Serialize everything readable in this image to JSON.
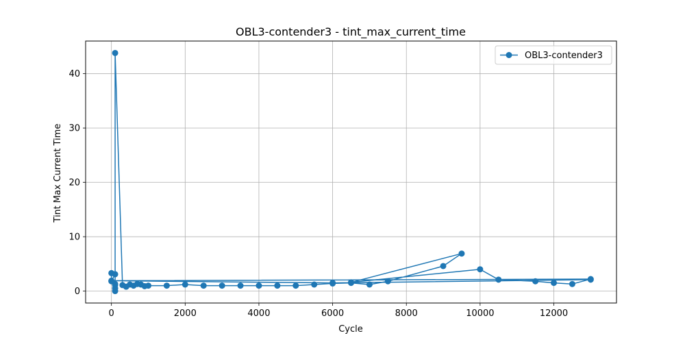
{
  "chart_data": {
    "type": "line",
    "title": "OBL3-contender3 - tint_max_current_time",
    "xlabel": "Cycle",
    "ylabel": "Tint Max Current Time",
    "xlim": [
      -700,
      13700
    ],
    "ylim": [
      -2.2,
      46.0
    ],
    "xticks": [
      0,
      2000,
      4000,
      6000,
      8000,
      10000,
      12000
    ],
    "yticks": [
      0,
      10,
      20,
      30,
      40
    ],
    "grid": true,
    "legend_position": "top-right",
    "series": [
      {
        "name": "OBL3-contender3",
        "color": "#1f77b4",
        "marker": "circle",
        "x": [
          0,
          0,
          100,
          100,
          100,
          100,
          100,
          100,
          300,
          400,
          500,
          600,
          700,
          800,
          900,
          1000,
          1500,
          2000,
          2500,
          3000,
          3500,
          4000,
          4500,
          5000,
          5500,
          6000,
          6500,
          7000,
          7500,
          9000,
          9500,
          6500,
          10000,
          10500,
          11500,
          12000,
          12500,
          13000,
          0,
          6000,
          13000
        ],
        "y": [
          3.3,
          1.8,
          3.1,
          1.1,
          0.5,
          0.0,
          1.3,
          43.8,
          1.1,
          0.8,
          1.2,
          1.0,
          1.3,
          1.2,
          0.9,
          1.0,
          1.0,
          1.2,
          1.0,
          1.0,
          1.0,
          1.0,
          1.0,
          1.0,
          1.2,
          1.4,
          1.5,
          1.2,
          1.8,
          4.6,
          6.9,
          1.6,
          4.0,
          2.1,
          1.8,
          1.5,
          1.3,
          2.2,
          1.9,
          1.5,
          2.1
        ]
      }
    ]
  }
}
